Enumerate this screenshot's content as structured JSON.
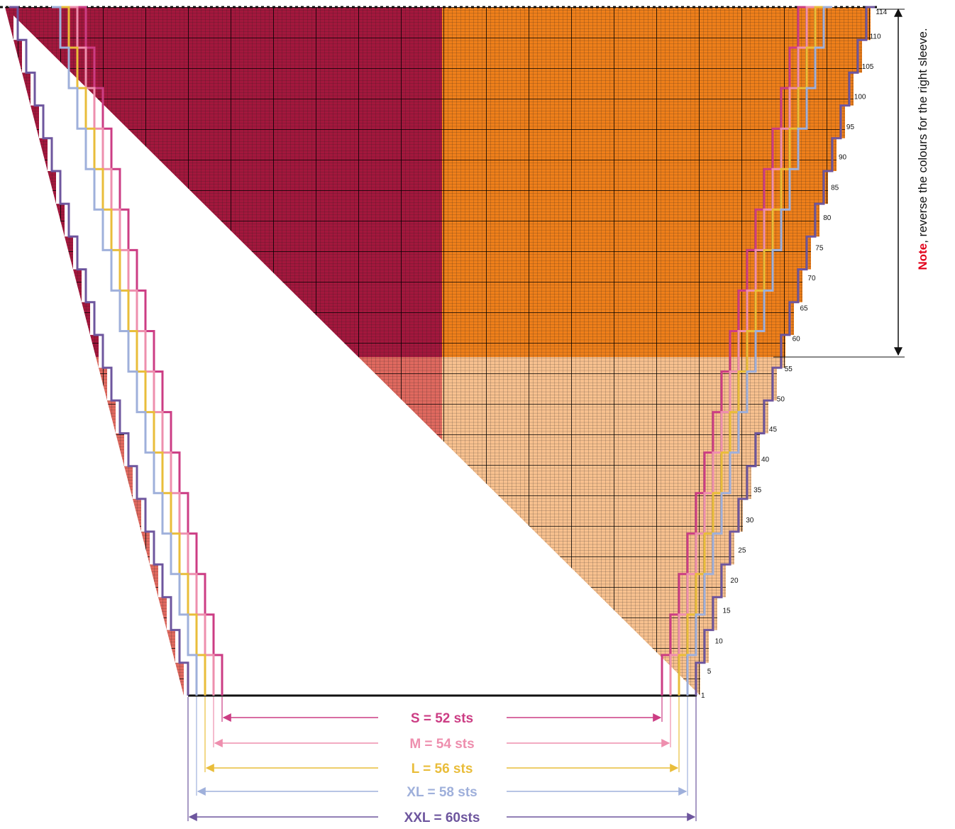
{
  "note": {
    "bold": "Note",
    "text": ", reverse the colours for the right sleeve."
  },
  "row_labels": [
    "114",
    "110",
    "105",
    "100",
    "95",
    "90",
    "85",
    "80",
    "75",
    "70",
    "65",
    "60",
    "55",
    "50",
    "45",
    "40",
    "35",
    "30",
    "25",
    "20",
    "15",
    "10",
    "5",
    "1"
  ],
  "sizes": [
    {
      "label": "S = 52 sts",
      "color": "#cc3d84",
      "stitches": 52
    },
    {
      "label": "M = 54 sts",
      "color": "#ee8fae",
      "stitches": 54
    },
    {
      "label": "L = 56 sts",
      "color": "#e9bd3a",
      "stitches": 56
    },
    {
      "label": "XL = 58 sts",
      "color": "#9fb0db",
      "stitches": 58
    },
    {
      "label": "XXL = 60sts",
      "color": "#6e569e",
      "stitches": 60
    }
  ],
  "colors": {
    "upper_left": "#a3173d",
    "upper_right": "#ef7f1a",
    "lower_left": "#e0695f",
    "lower_right": "#f8c18f",
    "grid_line": "#1a1a1a"
  },
  "rows_total": 114,
  "colour_change_row": 58
}
